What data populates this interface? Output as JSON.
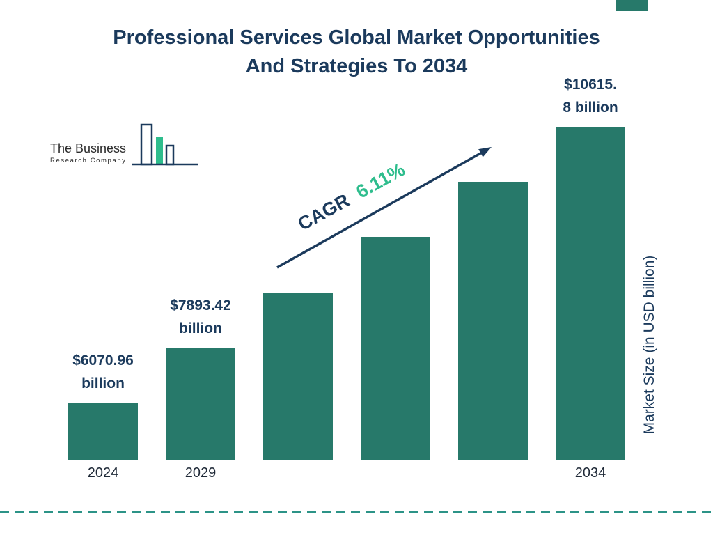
{
  "title": {
    "line1": "Professional Services Global Market Opportunities",
    "line2": "And Strategies To 2034"
  },
  "logo": {
    "line1": "The Business",
    "line2": "Research Company"
  },
  "cagr": {
    "label": "CAGR",
    "value": "6.11%"
  },
  "colors": {
    "bar": "#27796A",
    "navy": "#1B3A5C",
    "green": "#2EBD8D",
    "dash": "#2C9387",
    "tick_text": "#1F2937"
  },
  "chart_data": {
    "type": "bar",
    "title": "Professional Services Global Market Opportunities And Strategies To 2034",
    "categories": [
      "2024",
      "2029",
      "",
      "",
      "",
      "2034"
    ],
    "values": [
      6070.96,
      7893.42,
      8574.0,
      9254.5,
      9935.2,
      10615.8
    ],
    "unlabeled_bars_estimated": true,
    "value_labels": [
      {
        "bar": 0,
        "lines": [
          "$6070.96",
          "billion"
        ]
      },
      {
        "bar": 1,
        "lines": [
          "$7893.42",
          "billion"
        ]
      },
      {
        "bar": 5,
        "lines": [
          "$10615.",
          "8 billion"
        ]
      }
    ],
    "xlabel": "",
    "ylabel": "Market Size (in USD billion)",
    "cagr": "6.11%",
    "legend": "none",
    "grid": false
  }
}
